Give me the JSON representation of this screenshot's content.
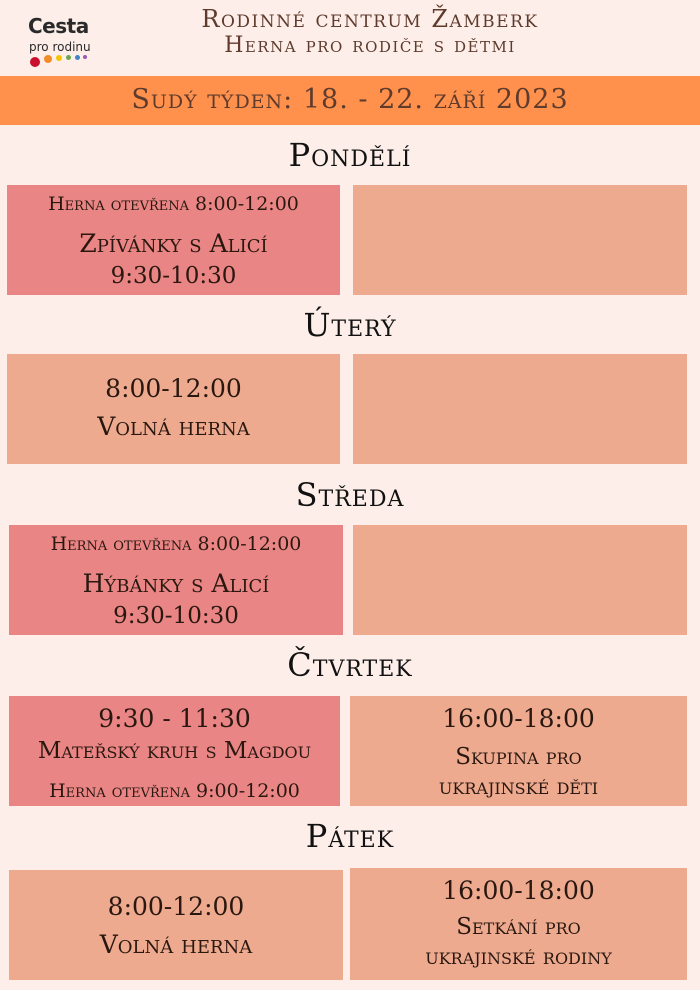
{
  "logo": {
    "word": "Cesta",
    "sub": "pro rodinu",
    "dot_colors": [
      "#c8102e",
      "#f28c28",
      "#f5c400",
      "#6aa84f",
      "#3d85c6",
      "#9b59b6"
    ]
  },
  "header": {
    "line1": "Rodinné centrum Žamberk",
    "line2": "Herna pro rodiče s dětmi"
  },
  "week": {
    "label": "Sudý týden: 18. - 22. září 2023"
  },
  "colors": {
    "band": "#ff914d",
    "pink_cell": "#ea8585",
    "peach_cell": "#eeaa8f",
    "background": "#fdeee9"
  },
  "days": {
    "mon": {
      "name": "Pondělí",
      "left": {
        "line1": "Herna otevřena 8:00-12:00",
        "line2": "Zpívánky s Alicí",
        "line3": "9:30-10:30"
      }
    },
    "tue": {
      "name": "Úterý",
      "left": {
        "line1": "8:00-12:00",
        "line2": "Volná herna"
      }
    },
    "wed": {
      "name": "Středa",
      "left": {
        "line1": "Herna otevřena 8:00-12:00",
        "line2": "Hýbánky s Alicí",
        "line3": "9:30-10:30"
      }
    },
    "thu": {
      "name": "Čtvrtek",
      "left": {
        "line1": "9:30 - 11:30",
        "line2": "Mateřský kruh s Magdou",
        "line3": "Herna otevřena 9:00-12:00"
      },
      "right": {
        "line1": "16:00-18:00",
        "line2": "Skupina pro",
        "line3": "ukrajinské děti"
      }
    },
    "fri": {
      "name": "Pátek",
      "left": {
        "line1": "8:00-12:00",
        "line2": "Volná herna"
      },
      "right": {
        "line1": "16:00-18:00",
        "line2": "Setkání pro",
        "line3": "ukrajinské rodiny"
      }
    }
  }
}
